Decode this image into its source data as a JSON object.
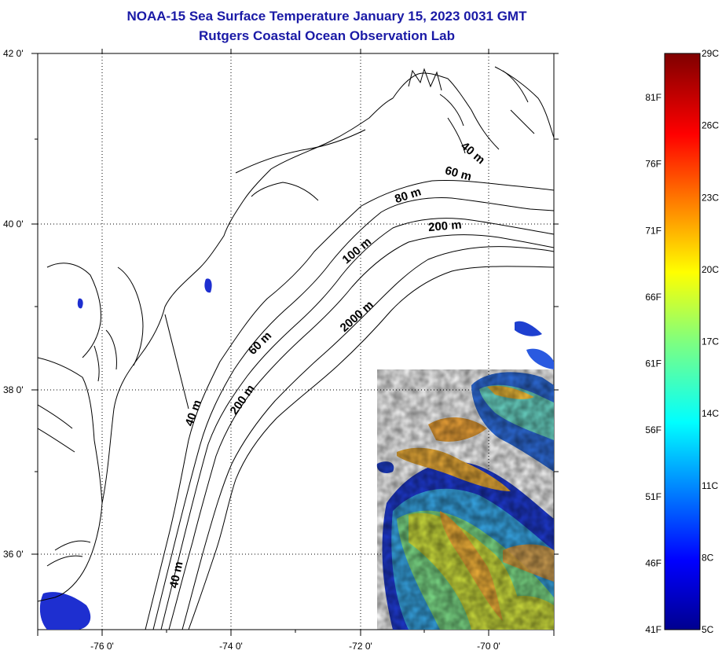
{
  "title": {
    "line1": "NOAA-15 Sea Surface Temperature January 15, 2023 0031 GMT",
    "line2": "Rutgers Coastal Ocean Observation Lab"
  },
  "map": {
    "lat_labels": [
      "42 0'",
      "40 0'",
      "38 0'",
      "36 0'"
    ],
    "lon_labels": [
      "-76 0'",
      "-74 0'",
      "-72 0'",
      "-70 0'"
    ],
    "depth_labels": [
      "40 m",
      "60 m",
      "80 m",
      "200 m",
      "100 m",
      "2000 m",
      "60 m",
      "40 m",
      "200 m",
      "40 m"
    ],
    "land_fill_color": "#ffffff",
    "sst_colors": [
      "#1e2fd0",
      "#3c7be8",
      "#2fb7e6",
      "#6fe08f",
      "#c6e23a",
      "#f5c13b",
      "#f59a2e"
    ]
  },
  "colorbar": {
    "celsius": [
      "29C",
      "26C",
      "23C",
      "20C",
      "17C",
      "14C",
      "11C",
      "8C",
      "5C"
    ],
    "fahrenheit": [
      "81F",
      "76F",
      "71F",
      "66F",
      "61F",
      "56F",
      "51F",
      "46F",
      "41F"
    ],
    "min_c": 5,
    "max_c": 29
  }
}
